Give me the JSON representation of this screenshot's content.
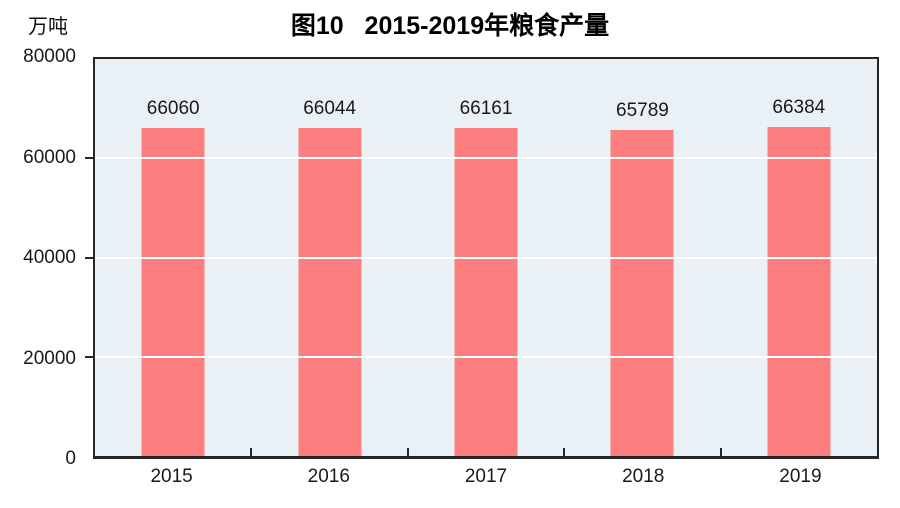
{
  "chart_data": {
    "type": "bar",
    "title": "图10   2015-2019年粮食产量",
    "unit_label": "万吨",
    "categories": [
      "2015",
      "2016",
      "2017",
      "2018",
      "2019"
    ],
    "values": [
      66060,
      66044,
      66161,
      65789,
      66384
    ],
    "ylim": [
      0,
      80000
    ],
    "yticks": [
      0,
      20000,
      40000,
      60000,
      80000
    ],
    "grid": true,
    "legend": "none",
    "colors": {
      "bar": "#FC7E7E",
      "plot_background": "#EAF1F6",
      "gridline": "#FFFFFF",
      "axis_border": "#262626",
      "text": "#1a1a1a"
    }
  }
}
